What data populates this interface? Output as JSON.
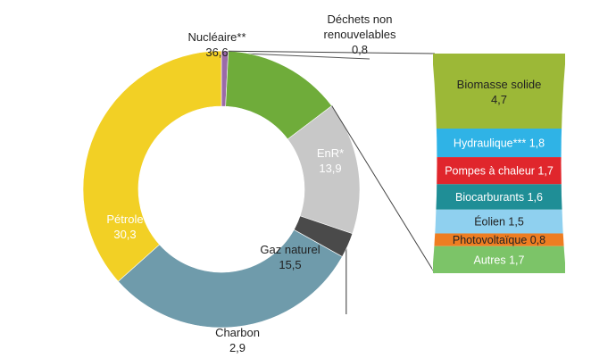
{
  "chart_data": [
    {
      "type": "pie",
      "subtype": "donut",
      "start_angle_note": "clockwise from top",
      "slices": [
        {
          "label": "Déchets non renouvelables",
          "label_lines": [
            "Déchets non",
            "renouvelables"
          ],
          "value_text": "0,8",
          "value": 0.8,
          "color": "#9b6aa8",
          "leader": true
        },
        {
          "label": "EnR*",
          "label_lines": [
            "EnR*"
          ],
          "value_text": "13,9",
          "value": 13.9,
          "color": "#6fac3a",
          "label_color": "#ffffff"
        },
        {
          "label": "Gaz naturel",
          "label_lines": [
            "Gaz naturel"
          ],
          "value_text": "15,5",
          "value": 15.5,
          "color": "#c8c8c8",
          "label_color": "#222222"
        },
        {
          "label": "Charbon",
          "label_lines": [
            "Charbon"
          ],
          "value_text": "2,9",
          "value": 2.9,
          "color": "#4a4a4a",
          "label_color": "#222222",
          "leader": true
        },
        {
          "label": "Pétrole",
          "label_lines": [
            "Pétrole"
          ],
          "value_text": "30,3",
          "value": 30.3,
          "color": "#6f9bab",
          "label_color": "#ffffff"
        },
        {
          "label": "Nucléaire**",
          "label_lines": [
            "Nucléaire**"
          ],
          "value_text": "36,6",
          "value": 36.6,
          "color": "#f2d025",
          "label_color": "#222222"
        }
      ]
    },
    {
      "type": "bar",
      "subtype": "stacked-breakdown",
      "parent": "EnR*",
      "segments": [
        {
          "label": "Biomasse solide",
          "value_text": "4,7",
          "value": 4.7,
          "color": "#9cb837",
          "text_color": "#222222"
        },
        {
          "label": "Hydraulique***",
          "value_text": "1,8",
          "value": 1.8,
          "color": "#2fb3e6",
          "text_color": "#ffffff"
        },
        {
          "label": "Pompes à chaleur",
          "value_text": "1,7",
          "value": 1.7,
          "color": "#e0262c",
          "text_color": "#ffffff"
        },
        {
          "label": "Biocarburants",
          "value_text": "1,6",
          "value": 1.6,
          "color": "#1f8e96",
          "text_color": "#ffffff"
        },
        {
          "label": "Éolien",
          "value_text": "1,5",
          "value": 1.5,
          "color": "#8fd0ef",
          "text_color": "#222222"
        },
        {
          "label": "Photovoltaïque",
          "value_text": "0,8",
          "value": 0.8,
          "color": "#ee7d22",
          "text_color": "#222222"
        },
        {
          "label": "Autres",
          "value_text": "1,7",
          "value": 1.7,
          "color": "#7cc468",
          "text_color": "#ffffff"
        }
      ]
    }
  ]
}
